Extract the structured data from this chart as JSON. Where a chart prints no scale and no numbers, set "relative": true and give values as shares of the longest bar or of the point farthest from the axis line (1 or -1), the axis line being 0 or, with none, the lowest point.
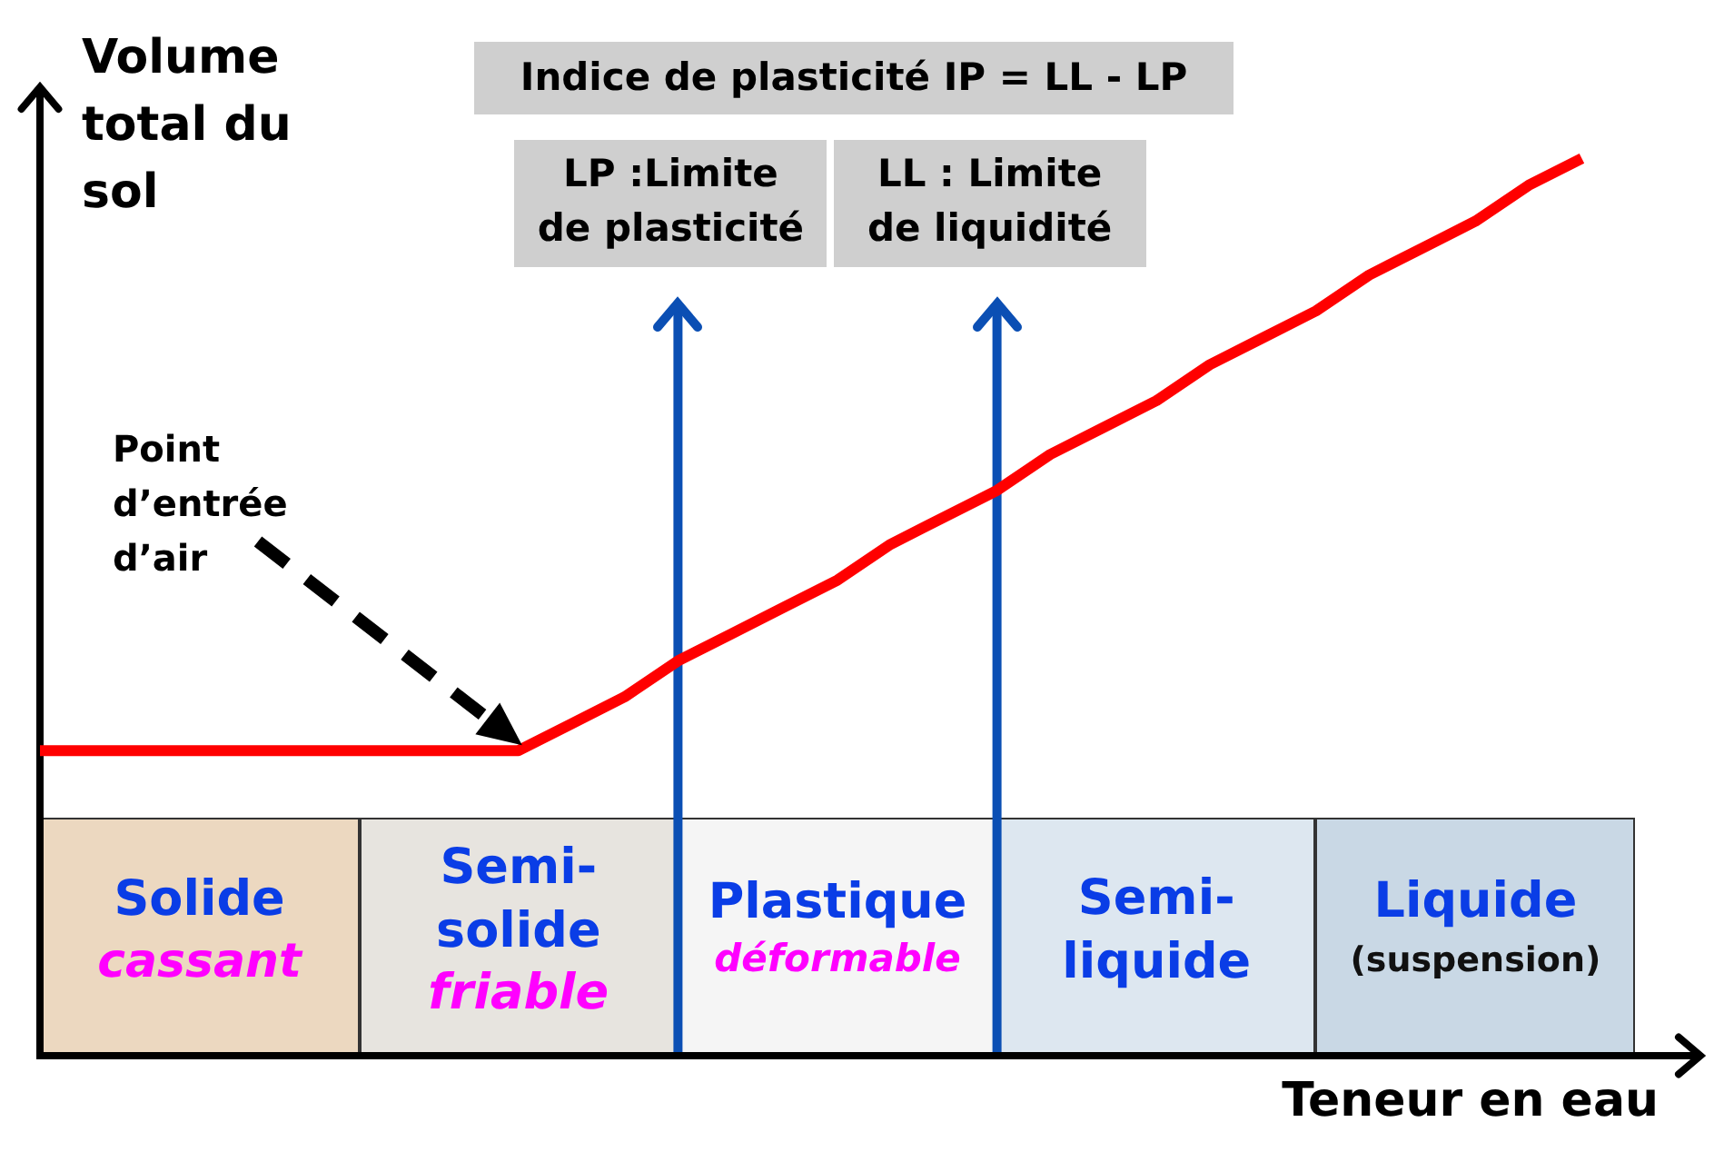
{
  "chart_data": {
    "type": "line",
    "relative": true,
    "xlabel": "Teneur en eau",
    "ylabel": "Volume\ntotal du\nsol",
    "categories": [
      null,
      null,
      null,
      "Solide\ncassant",
      null,
      null,
      null,
      null,
      null,
      "Semi-\nsolide\nfriable",
      null,
      null,
      "LP :Limite\nde plasticité",
      null,
      null,
      "Plastique\ndéformable",
      null,
      null,
      "LL : Limite\nde liquidité",
      null,
      null,
      "Semi-\nliquide",
      null,
      null,
      null,
      null,
      null,
      "Liquide\n(suspension)",
      null,
      null,
      null
    ],
    "values": [
      0.34,
      0.34,
      0.34,
      0.34,
      0.34,
      0.34,
      0.34,
      0.34,
      0.34,
      0.34,
      0.37,
      0.4,
      0.44,
      0.47,
      0.5,
      0.53,
      0.57,
      0.6,
      0.63,
      0.67,
      0.7,
      0.73,
      0.77,
      0.8,
      0.83,
      0.87,
      0.9,
      0.93,
      0.97,
      1,
      null
    ],
    "color": "#ff0000",
    "ref_lines": [
      {
        "axis": "x",
        "value": "LP :Limite\nde plasticité",
        "color": "#0b4fb4"
      },
      {
        "axis": "x",
        "value": "LL : Limite\nde liquidité",
        "color": "#0b4fb4"
      }
    ],
    "annotations": [
      "Indice de plasticité IP = LL - LP",
      "Point\nd’entrée\nd’air"
    ]
  }
}
